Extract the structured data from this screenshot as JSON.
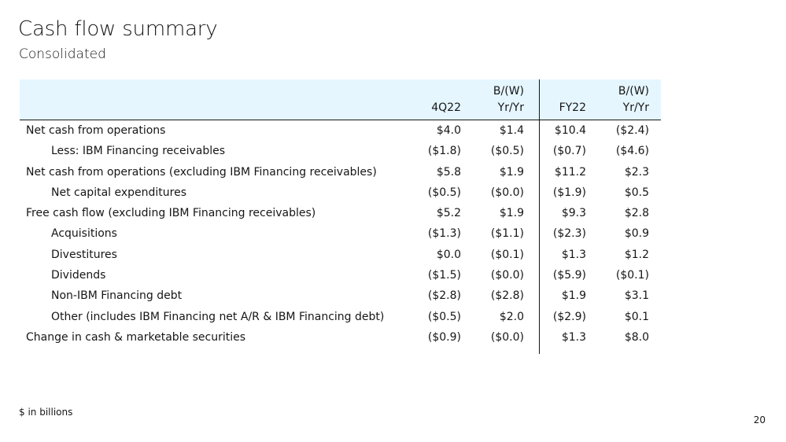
{
  "title": "Cash flow summary",
  "subtitle": "Consolidated",
  "header": {
    "col1": "4Q22",
    "col2_line1": "B/(W)",
    "col2_line2": "Yr/Yr",
    "col3": "FY22",
    "col4_line1": "B/(W)",
    "col4_line2": "Yr/Yr"
  },
  "rows": [
    {
      "label": "Net cash from operations",
      "v1": "$4.0",
      "v2": "$1.4",
      "v3": "$10.4",
      "v4": "($2.4)"
    },
    {
      "label": "Less: IBM Financing receivables",
      "v1": "($1.8)",
      "v2": "($0.5)",
      "v3": "($0.7)",
      "v4": "($4.6)"
    },
    {
      "label": "Net cash from operations (excluding IBM Financing receivables)",
      "v1": "$5.8",
      "v2": "$1.9",
      "v3": "$11.2",
      "v4": "$2.3"
    },
    {
      "label": "Net capital expenditures",
      "v1": "($0.5)",
      "v2": "($0.0)",
      "v3": "($1.9)",
      "v4": "$0.5"
    },
    {
      "label": "Free cash flow (excluding IBM Financing receivables)",
      "v1": "$5.2",
      "v2": "$1.9",
      "v3": "$9.3",
      "v4": "$2.8"
    },
    {
      "label": "Acquisitions",
      "v1": "($1.3)",
      "v2": "($1.1)",
      "v3": "($2.3)",
      "v4": "$0.9"
    },
    {
      "label": "Divestitures",
      "v1": "$0.0",
      "v2": "($0.1)",
      "v3": "$1.3",
      "v4": "$1.2"
    },
    {
      "label": "Dividends",
      "v1": "($1.5)",
      "v2": "($0.0)",
      "v3": "($5.9)",
      "v4": "($0.1)"
    },
    {
      "label": "Non-IBM Financing debt",
      "v1": "($2.8)",
      "v2": "($2.8)",
      "v3": "$1.9",
      "v4": "$3.1"
    },
    {
      "label": "Other (includes IBM Financing net A/R & IBM Financing debt)",
      "v1": "($0.5)",
      "v2": "$2.0",
      "v3": "($2.9)",
      "v4": "$0.1"
    },
    {
      "label": "Change in cash & marketable securities",
      "v1": "($0.9)",
      "v2": "($0.0)",
      "v3": "$1.3",
      "v4": "$8.0"
    }
  ],
  "footnote": "$ in billions",
  "page_number": "20",
  "colors": {
    "header_bg": "#e5f6ff",
    "text": "#161616"
  }
}
